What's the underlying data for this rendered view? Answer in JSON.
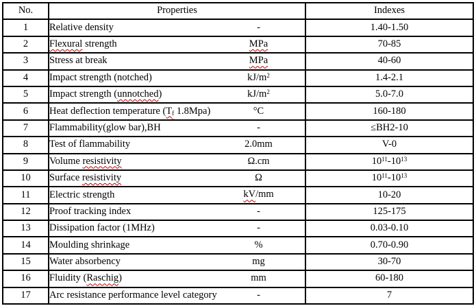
{
  "table": {
    "headers": {
      "no": "No.",
      "properties": "Properties",
      "indexes": "Indexes"
    },
    "colors": {
      "border": "#000000",
      "squiggle": "#c00000",
      "text": "#000000",
      "background": "#ffffff"
    },
    "rows": [
      {
        "no": "1",
        "name": [
          {
            "t": "Relative density"
          }
        ],
        "unit": [
          {
            "t": "-"
          }
        ],
        "index": [
          {
            "t": "1.40-1.50"
          }
        ]
      },
      {
        "no": "2",
        "name": [
          {
            "t": "Flexural",
            "sq": true
          },
          {
            "t": " strength"
          }
        ],
        "unit": [
          {
            "t": "MPa",
            "sq": true
          }
        ],
        "index": [
          {
            "t": "70-85"
          }
        ]
      },
      {
        "no": "3",
        "name": [
          {
            "t": "Stress at break"
          }
        ],
        "unit": [
          {
            "t": "MPa",
            "sq": true
          }
        ],
        "index": [
          {
            "t": "40-60"
          }
        ]
      },
      {
        "no": "4",
        "name": [
          {
            "t": "Impact strength (notched)"
          }
        ],
        "unit": [
          {
            "t": "kJ/m"
          },
          {
            "t": "2",
            "sup": true
          }
        ],
        "index": [
          {
            "t": "1.4-2.1"
          }
        ]
      },
      {
        "no": "5",
        "name": [
          {
            "t": "Impact strength ("
          },
          {
            "t": "unnotched",
            "sq": true
          },
          {
            "t": ")"
          }
        ],
        "unit": [
          {
            "t": "kJ/m"
          },
          {
            "t": "2",
            "sup": true
          }
        ],
        "index": [
          {
            "t": "5.0-7.0"
          }
        ]
      },
      {
        "no": "6",
        "name": [
          {
            "t": "Heat deflection temperature ("
          },
          {
            "t": "T",
            "sq": true
          },
          {
            "t": "f",
            "sub": true,
            "sq": true
          },
          {
            "t": " 1.8Mpa)"
          }
        ],
        "unit": [
          {
            "t": "°C"
          }
        ],
        "index": [
          {
            "t": "160-180"
          }
        ]
      },
      {
        "no": "7",
        "name": [
          {
            "t": "Flammability(glow bar),BH"
          }
        ],
        "unit": [
          {
            "t": "-"
          }
        ],
        "index": [
          {
            "t": "≤BH2-10"
          }
        ]
      },
      {
        "no": "8",
        "name": [
          {
            "t": "Test of flammability"
          }
        ],
        "unit": [
          {
            "t": "2.0mm"
          }
        ],
        "index": [
          {
            "t": "V-0"
          }
        ]
      },
      {
        "no": "9",
        "name": [
          {
            "t": "Volume "
          },
          {
            "t": "resistivity",
            "sq": true
          }
        ],
        "unit": [
          {
            "t": "Ω.cm"
          }
        ],
        "index": [
          {
            "t": "10"
          },
          {
            "t": "11",
            "sup": true
          },
          {
            "t": "-10"
          },
          {
            "t": "13",
            "sup": true
          }
        ]
      },
      {
        "no": "10",
        "name": [
          {
            "t": "Surface "
          },
          {
            "t": "resistivity",
            "sq": true
          }
        ],
        "unit": [
          {
            "t": "Ω"
          }
        ],
        "index": [
          {
            "t": "10"
          },
          {
            "t": "11",
            "sup": true
          },
          {
            "t": "-10"
          },
          {
            "t": "13",
            "sup": true
          }
        ]
      },
      {
        "no": "11",
        "name": [
          {
            "t": "Electric strength"
          }
        ],
        "unit": [
          {
            "t": "kV",
            "sq": true
          },
          {
            "t": "/mm"
          }
        ],
        "index": [
          {
            "t": "10-20"
          }
        ]
      },
      {
        "no": "12",
        "name": [
          {
            "t": "Proof tracking index"
          }
        ],
        "unit": [
          {
            "t": "-"
          }
        ],
        "index": [
          {
            "t": "125-175"
          }
        ]
      },
      {
        "no": "13",
        "name": [
          {
            "t": "Dissipation factor (1MHz)"
          }
        ],
        "unit": [
          {
            "t": "-"
          }
        ],
        "index": [
          {
            "t": "0.03-0.10"
          }
        ]
      },
      {
        "no": "14",
        "name": [
          {
            "t": "Moulding shrinkage"
          }
        ],
        "unit": [
          {
            "t": "%"
          }
        ],
        "index": [
          {
            "t": "0.70-0.90"
          }
        ]
      },
      {
        "no": "15",
        "name": [
          {
            "t": "Water absorbency"
          }
        ],
        "unit": [
          {
            "t": "mg"
          }
        ],
        "index": [
          {
            "t": "30-70"
          }
        ]
      },
      {
        "no": "16",
        "name": [
          {
            "t": "Fluidity ("
          },
          {
            "t": "Raschig",
            "sq": true
          },
          {
            "t": ")"
          }
        ],
        "unit": [
          {
            "t": "mm"
          }
        ],
        "index": [
          {
            "t": "60-180"
          }
        ]
      },
      {
        "no": "17",
        "name": [
          {
            "t": "Arc resistance performance level category"
          }
        ],
        "unit": [
          {
            "t": "-"
          }
        ],
        "index": [
          {
            "t": "7"
          }
        ],
        "index_top": true
      }
    ]
  }
}
